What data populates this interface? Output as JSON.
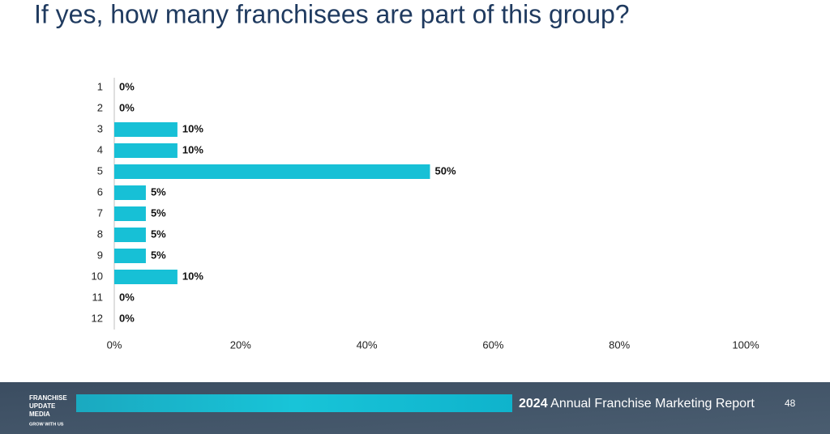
{
  "chart_data": {
    "type": "bar",
    "orientation": "horizontal",
    "title": "If yes, how many franchisees are part of this group?",
    "categories": [
      "1",
      "2",
      "3",
      "4",
      "5",
      "6",
      "7",
      "8",
      "9",
      "10",
      "11",
      "12"
    ],
    "values": [
      0,
      0,
      10,
      10,
      50,
      5,
      5,
      5,
      5,
      10,
      0,
      0
    ],
    "value_labels": [
      "0%",
      "0%",
      "10%",
      "10%",
      "50%",
      "5%",
      "5%",
      "5%",
      "5%",
      "10%",
      "0%",
      "0%"
    ],
    "color": "#17c0d6",
    "xlim": [
      0,
      100
    ],
    "xticks": [
      {
        "value": 0,
        "label": "0%"
      },
      {
        "value": 20,
        "label": "20%"
      },
      {
        "value": 40,
        "label": "40%"
      },
      {
        "value": 60,
        "label": "60%"
      },
      {
        "value": 80,
        "label": "80%"
      },
      {
        "value": 100,
        "label": "100%"
      }
    ],
    "grid": false
  },
  "footer": {
    "logo_lines": [
      "FRANCHISE",
      "UPDATE",
      "MEDIA"
    ],
    "tagline": "GROW WITH US",
    "year": "2024",
    "report": "Annual Franchise Marketing Report",
    "page": 48
  }
}
